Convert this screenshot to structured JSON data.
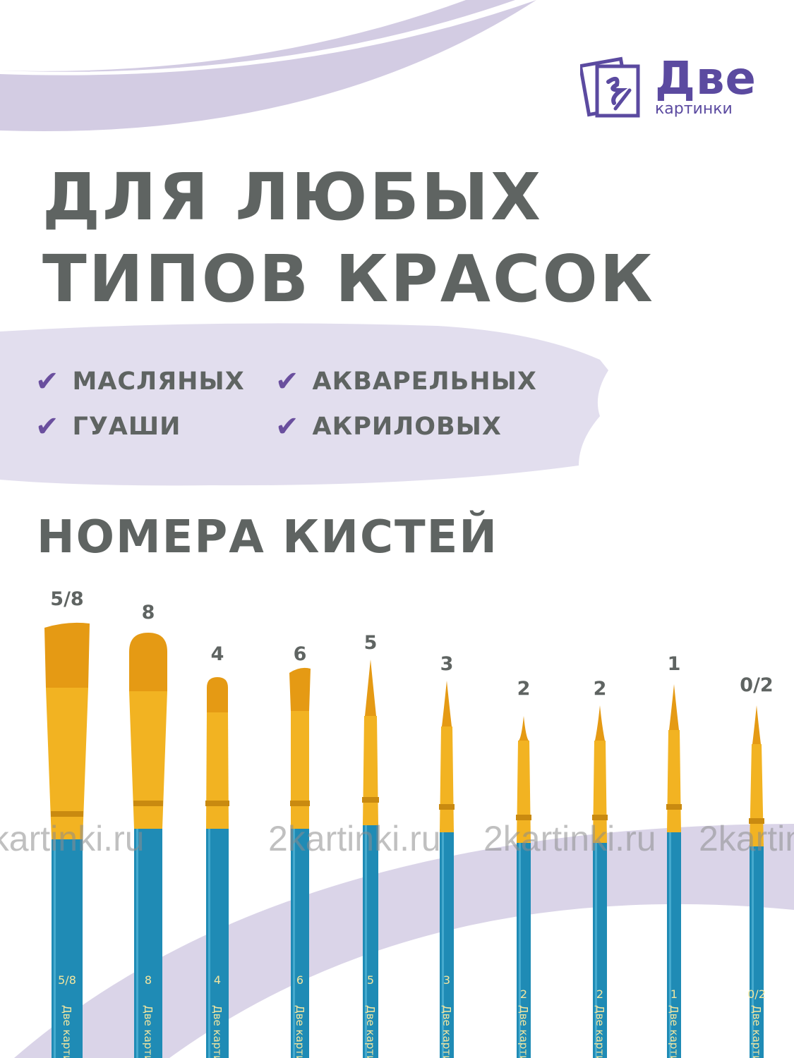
{
  "logo": {
    "name_big": "Две",
    "name_small": "картинки",
    "color": "#5b4aa0"
  },
  "headline": {
    "line1": "Для любых",
    "line2": "типов красок"
  },
  "features": [
    {
      "label": "МАСЛЯНЫХ",
      "icon": "check-icon"
    },
    {
      "label": "АКВАРЕЛЬНЫХ",
      "icon": "check-icon"
    },
    {
      "label": "ГУАШИ",
      "icon": "check-icon"
    },
    {
      "label": "АКРИЛОВЫХ",
      "icon": "check-icon"
    }
  ],
  "check_symbol": "✔",
  "subheading": "НОМЕРА КИСТЕЙ",
  "brushes": [
    {
      "number": "5/8",
      "type": "flat"
    },
    {
      "number": "8",
      "type": "filbert"
    },
    {
      "number": "4",
      "type": "filbert"
    },
    {
      "number": "6",
      "type": "flat"
    },
    {
      "number": "5",
      "type": "round"
    },
    {
      "number": "3",
      "type": "round"
    },
    {
      "number": "2",
      "type": "round"
    },
    {
      "number": "2",
      "type": "round"
    },
    {
      "number": "1",
      "type": "round"
    },
    {
      "number": "0/2",
      "type": "round"
    }
  ],
  "handle_text": "Две картинки",
  "watermark": "2kartinki.ru",
  "colors": {
    "text": "#5f6462",
    "accent": "#6a4f9e",
    "lilac": "#d6d0e6",
    "handle": "#1f8bb5",
    "ferrule": "#f2b322",
    "bristle": "#e59a14"
  }
}
